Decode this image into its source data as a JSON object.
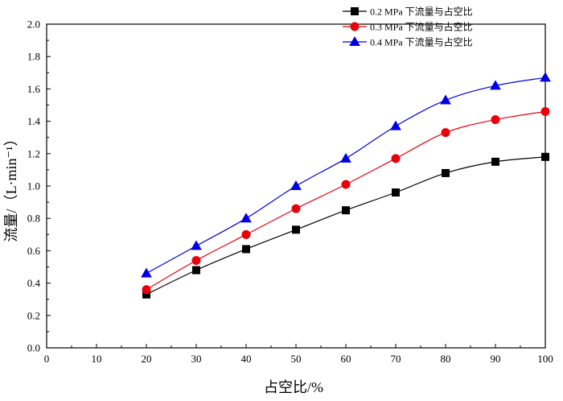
{
  "chart_data": {
    "type": "line",
    "xlabel": "占空比/%",
    "ylabel": "流量/（L·min⁻¹）",
    "xlim": [
      0,
      100
    ],
    "ylim": [
      0.0,
      2.0
    ],
    "x_ticks": [
      "0",
      "10",
      "20",
      "30",
      "40",
      "50",
      "60",
      "70",
      "80",
      "90",
      "100"
    ],
    "y_ticks": [
      "0.0",
      "0.2",
      "0.4",
      "0.6",
      "0.8",
      "1.0",
      "1.2",
      "1.4",
      "1.6",
      "1.8",
      "2.0"
    ],
    "x": [
      20,
      30,
      40,
      50,
      60,
      70,
      80,
      90,
      100
    ],
    "series": [
      {
        "name": "0.2 MPa  下流量与占空比",
        "marker": "square",
        "marker_color": "#000000",
        "line_color": "#000000",
        "values": [
          0.33,
          0.48,
          0.61,
          0.73,
          0.85,
          0.96,
          1.08,
          1.15,
          1.18
        ]
      },
      {
        "name": "0.3 MPa  下流量与占空比",
        "marker": "circle",
        "marker_color": "#e8000b",
        "line_color": "#e8000b",
        "values": [
          0.36,
          0.54,
          0.7,
          0.86,
          1.01,
          1.17,
          1.33,
          1.41,
          1.46
        ]
      },
      {
        "name": "0.4 MPa  下流量与占空比",
        "marker": "triangle",
        "marker_color": "#0000e0",
        "line_color": "#0000e0",
        "values": [
          0.46,
          0.63,
          0.8,
          1.0,
          1.17,
          1.37,
          1.53,
          1.62,
          1.67
        ]
      }
    ],
    "grid": false,
    "legend_position": "top-right"
  }
}
